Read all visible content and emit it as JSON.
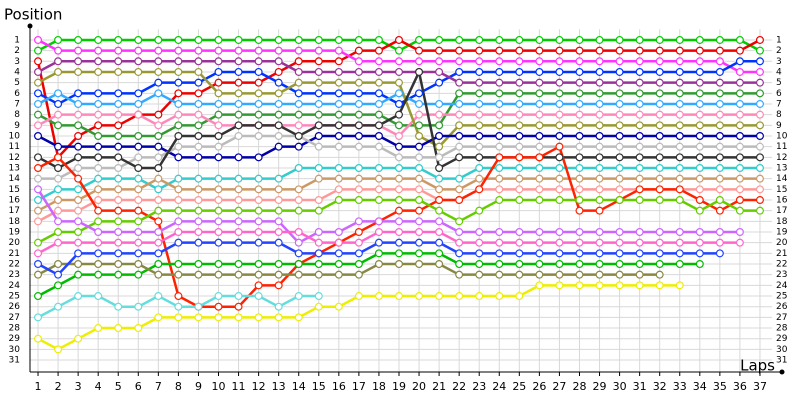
{
  "chart_data": {
    "type": "line",
    "y_axis_label": "Position",
    "x_axis_label": "Laps",
    "x": [
      1,
      2,
      3,
      4,
      5,
      6,
      7,
      8,
      9,
      10,
      11,
      12,
      13,
      14,
      15,
      16,
      17,
      18,
      19,
      20,
      21,
      22,
      23,
      24,
      25,
      26,
      27,
      28,
      29,
      30,
      31,
      32,
      33,
      34,
      35,
      36,
      37
    ],
    "xlim": [
      0.6,
      37.6
    ],
    "ylim": [
      32,
      0
    ],
    "grid": true,
    "yticks": [
      1,
      2,
      3,
      4,
      5,
      6,
      7,
      8,
      9,
      10,
      11,
      12,
      13,
      14,
      15,
      16,
      17,
      18,
      19,
      20,
      21,
      22,
      23,
      24,
      25,
      26,
      27,
      28,
      29,
      30,
      31
    ],
    "series": [
      {
        "color": "#00cc00",
        "values": [
          2,
          1,
          1,
          1,
          1,
          1,
          1,
          1,
          1,
          1,
          1,
          1,
          1,
          1,
          1,
          1,
          1,
          1,
          2,
          1,
          1,
          1,
          1,
          1,
          1,
          1,
          1,
          1,
          1,
          1,
          1,
          1,
          1,
          1,
          1,
          1,
          2
        ]
      },
      {
        "color": "#ee0000",
        "values": [
          3,
          12,
          10,
          9,
          9,
          8,
          8,
          6,
          6,
          5,
          5,
          5,
          4,
          3,
          3,
          3,
          2,
          2,
          1,
          2,
          2,
          2,
          2,
          2,
          2,
          2,
          2,
          2,
          2,
          2,
          2,
          2,
          2,
          2,
          2,
          2,
          1
        ]
      },
      {
        "color": "#ff33ff",
        "values": [
          1,
          2,
          2,
          2,
          2,
          2,
          2,
          2,
          2,
          2,
          2,
          2,
          2,
          2,
          2,
          2,
          3,
          3,
          3,
          3,
          3,
          3,
          3,
          3,
          3,
          3,
          3,
          3,
          3,
          3,
          3,
          3,
          3,
          3,
          3,
          4,
          4
        ]
      },
      {
        "color": "#0033ff",
        "values": [
          6,
          7,
          6,
          6,
          6,
          6,
          5,
          5,
          5,
          4,
          4,
          4,
          5,
          6,
          6,
          6,
          6,
          6,
          7,
          6,
          5,
          4,
          4,
          4,
          4,
          4,
          4,
          4,
          4,
          4,
          4,
          4,
          4,
          4,
          4,
          3,
          3
        ]
      },
      {
        "color": "#993399",
        "values": [
          4,
          3,
          3,
          3,
          3,
          3,
          3,
          3,
          3,
          3,
          3,
          3,
          3,
          4,
          4,
          4,
          4,
          4,
          4,
          4,
          4,
          5,
          5,
          5,
          5,
          5,
          5,
          5,
          5,
          5,
          5,
          5,
          5,
          5,
          5,
          5,
          5
        ]
      },
      {
        "color": "#339933",
        "values": [
          8,
          9,
          9,
          10,
          10,
          10,
          10,
          9,
          9,
          8,
          8,
          8,
          8,
          8,
          8,
          8,
          8,
          8,
          9,
          9,
          9,
          6,
          6,
          6,
          6,
          6,
          6,
          6,
          6,
          6,
          6,
          6,
          6,
          6,
          6,
          6,
          6
        ]
      },
      {
        "color": "#33aaff",
        "values": [
          7,
          6,
          7,
          7,
          7,
          7,
          6,
          7,
          7,
          7,
          7,
          7,
          7,
          7,
          7,
          7,
          7,
          7,
          6,
          7,
          7,
          7,
          7,
          7,
          7,
          7,
          7,
          7,
          7,
          7,
          7,
          7,
          7,
          7,
          7,
          7,
          7
        ]
      },
      {
        "color": "#ff88bb",
        "values": [
          9,
          8,
          8,
          8,
          8,
          8,
          9,
          8,
          8,
          9,
          9,
          9,
          9,
          9,
          9,
          9,
          9,
          9,
          10,
          8,
          8,
          8,
          8,
          8,
          8,
          8,
          8,
          8,
          8,
          8,
          8,
          8,
          8,
          8,
          8,
          8,
          8
        ]
      },
      {
        "color": "#999933",
        "values": [
          5,
          4,
          4,
          4,
          4,
          4,
          4,
          4,
          4,
          6,
          6,
          6,
          6,
          5,
          5,
          5,
          5,
          5,
          5,
          10,
          11,
          9,
          9,
          9,
          9,
          9,
          9,
          9,
          9,
          9,
          9,
          9,
          9,
          9,
          9,
          9,
          9
        ]
      },
      {
        "color": "#0000aa",
        "values": [
          10,
          11,
          11,
          11,
          11,
          11,
          11,
          12,
          12,
          12,
          12,
          12,
          11,
          11,
          10,
          10,
          10,
          10,
          11,
          11,
          10,
          10,
          10,
          10,
          10,
          10,
          10,
          10,
          10,
          10,
          10,
          10,
          10,
          10,
          10,
          10,
          10
        ]
      },
      {
        "color": "#bbbbbb",
        "values": [
          14,
          14,
          13,
          13,
          13,
          12,
          12,
          11,
          11,
          11,
          10,
          10,
          10,
          10,
          11,
          11,
          11,
          11,
          12,
          12,
          12,
          11,
          11,
          11,
          11,
          11,
          11,
          11,
          11,
          11,
          11,
          11,
          11,
          11,
          11,
          11,
          11
        ]
      },
      {
        "color": "#333333",
        "values": [
          12,
          13,
          12,
          12,
          12,
          13,
          13,
          10,
          10,
          10,
          9,
          9,
          9,
          10,
          9,
          9,
          9,
          9,
          8,
          4,
          13,
          12,
          12,
          12,
          12,
          12,
          12,
          12,
          12,
          12,
          12,
          12,
          12,
          12,
          12,
          12,
          12
        ]
      },
      {
        "color": "#33cccc",
        "values": [
          16,
          15,
          15,
          14,
          14,
          14,
          15,
          14,
          14,
          14,
          14,
          14,
          14,
          13,
          13,
          13,
          13,
          13,
          13,
          13,
          14,
          14,
          13,
          13,
          13,
          13,
          13,
          13,
          13,
          13,
          13,
          13,
          13,
          13,
          13,
          13,
          13
        ]
      },
      {
        "color": "#cc9966",
        "values": [
          17,
          16,
          16,
          15,
          15,
          15,
          14,
          15,
          15,
          15,
          15,
          15,
          15,
          15,
          14,
          14,
          14,
          14,
          14,
          14,
          15,
          15,
          14,
          14,
          14,
          14,
          14,
          14,
          14,
          14,
          14,
          14,
          14,
          14,
          14,
          14,
          14
        ]
      },
      {
        "color": "#ff9999",
        "values": [
          18,
          17,
          17,
          16,
          16,
          16,
          16,
          16,
          16,
          16,
          16,
          16,
          16,
          16,
          16,
          15,
          15,
          15,
          15,
          15,
          16,
          16,
          15,
          15,
          15,
          15,
          15,
          15,
          15,
          15,
          15,
          15,
          15,
          15,
          15,
          15,
          15
        ]
      },
      {
        "color": "#ff2200",
        "values": [
          13,
          12,
          14,
          17,
          17,
          17,
          18,
          25,
          26,
          26,
          26,
          24,
          24,
          22,
          21,
          20,
          19,
          18,
          17,
          17,
          16,
          16,
          15,
          12,
          12,
          12,
          11,
          17,
          17,
          16,
          15,
          15,
          15,
          16,
          17,
          16,
          16
        ]
      },
      {
        "color": "#66cc00",
        "values": [
          20,
          19,
          19,
          18,
          18,
          18,
          17,
          17,
          17,
          17,
          17,
          17,
          17,
          17,
          17,
          16,
          16,
          16,
          16,
          16,
          17,
          18,
          17,
          16,
          16,
          16,
          16,
          16,
          16,
          16,
          16,
          16,
          16,
          17,
          16,
          17,
          17
        ]
      },
      {
        "color": "#cc66ff",
        "values": [
          15,
          18,
          18,
          19,
          19,
          19,
          19,
          18,
          18,
          18,
          18,
          18,
          18,
          20,
          19,
          19,
          18,
          18,
          18,
          18,
          18,
          19,
          19,
          19,
          19,
          19,
          19,
          19,
          19,
          19,
          19,
          19,
          19,
          19,
          19,
          19,
          null
        ]
      },
      {
        "color": "#ff66cc",
        "values": [
          21,
          20,
          20,
          20,
          20,
          20,
          20,
          19,
          19,
          19,
          19,
          19,
          19,
          19,
          20,
          20,
          20,
          19,
          19,
          19,
          19,
          20,
          20,
          20,
          20,
          20,
          20,
          20,
          20,
          20,
          20,
          20,
          20,
          20,
          20,
          20,
          null
        ]
      },
      {
        "color": "#eeee00",
        "values": [
          29,
          30,
          29,
          28,
          28,
          28,
          27,
          27,
          27,
          27,
          27,
          27,
          27,
          27,
          26,
          26,
          25,
          25,
          25,
          25,
          25,
          25,
          25,
          25,
          25,
          24,
          24,
          24,
          24,
          24,
          24,
          24,
          24,
          null,
          null,
          null,
          null
        ]
      },
      {
        "color": "#00bb00",
        "values": [
          25,
          24,
          23,
          23,
          23,
          23,
          22,
          22,
          22,
          22,
          22,
          22,
          22,
          22,
          22,
          22,
          22,
          21,
          21,
          21,
          21,
          22,
          22,
          22,
          22,
          22,
          22,
          22,
          22,
          22,
          22,
          22,
          22,
          22,
          null,
          null,
          null
        ]
      },
      {
        "color": "#888844",
        "values": [
          23,
          22,
          22,
          22,
          22,
          22,
          23,
          23,
          23,
          23,
          23,
          23,
          23,
          23,
          23,
          23,
          23,
          22,
          22,
          22,
          22,
          23,
          23,
          23,
          23,
          23,
          23,
          23,
          23,
          23,
          23,
          23,
          null,
          null,
          null,
          null,
          null
        ]
      },
      {
        "color": "#2244ff",
        "values": [
          22,
          23,
          21,
          21,
          21,
          21,
          21,
          20,
          20,
          20,
          20,
          20,
          20,
          21,
          21,
          21,
          21,
          20,
          20,
          20,
          20,
          21,
          21,
          21,
          21,
          21,
          21,
          21,
          21,
          21,
          21,
          21,
          21,
          21,
          21,
          null,
          null
        ]
      },
      {
        "color": "#66dddd",
        "values": [
          27,
          26,
          25,
          25,
          26,
          26,
          25,
          26,
          26,
          25,
          25,
          25,
          26,
          25,
          25,
          null,
          null,
          null,
          null,
          null,
          null,
          null,
          null,
          null,
          null,
          null,
          null,
          null,
          null,
          null,
          null,
          null,
          null,
          null,
          null,
          null,
          null
        ]
      }
    ]
  }
}
